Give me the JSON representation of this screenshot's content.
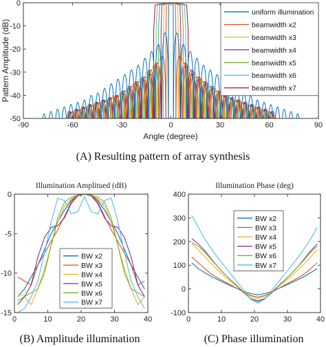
{
  "chart_data": [
    {
      "type": "line",
      "title": "",
      "xlabel": "Angle (degree)",
      "ylabel": "Pattern Amplitude (dB)",
      "xlim": [
        -90,
        90
      ],
      "ylim": [
        -50,
        0
      ],
      "xticks": [
        -90,
        -60,
        -30,
        0,
        30,
        60,
        90
      ],
      "yticks": [
        0,
        -10,
        -20,
        -30,
        -40,
        -50
      ],
      "grid": false,
      "legend_position": "right-top",
      "caption": "(A) Resulting pattern of array synthesis",
      "series": [
        {
          "name": "uniform  illumination",
          "color": "#0072BD",
          "mainlobe_halfwidth_deg": 1.5,
          "sidelobe_peak_db": [
            -13,
            -18,
            -21,
            -24,
            -27,
            -29,
            -31,
            -33,
            -35,
            -37,
            -39,
            -40,
            -42,
            -43,
            -44,
            -45,
            -46,
            -47,
            -48
          ]
        },
        {
          "name": "beamwidth x2",
          "color": "#D95319",
          "mainlobe_halfwidth_deg": 3,
          "sidelobe_peak_db": [
            -23,
            -26,
            -29,
            -32,
            -34,
            -36,
            -38,
            -40,
            -41,
            -42,
            -43,
            -44,
            -45,
            -46,
            -47
          ]
        },
        {
          "name": "beamwidth x3",
          "color": "#EDB120",
          "mainlobe_halfwidth_deg": 4.5,
          "sidelobe_peak_db": [
            -24,
            -27,
            -30,
            -33,
            -35,
            -37,
            -39,
            -40,
            -42,
            -43,
            -44,
            -45,
            -46,
            -47
          ]
        },
        {
          "name": "beamwidth x4",
          "color": "#7E2F8E",
          "mainlobe_halfwidth_deg": 6,
          "sidelobe_peak_db": [
            -26,
            -29,
            -32,
            -34,
            -36,
            -38,
            -40,
            -41,
            -42,
            -43,
            -44,
            -45,
            -46,
            -47
          ]
        },
        {
          "name": "beamwidth x5",
          "color": "#77AC30",
          "mainlobe_halfwidth_deg": 7.5,
          "sidelobe_peak_db": [
            -28,
            -31,
            -33,
            -35,
            -37,
            -39,
            -41,
            -42,
            -43,
            -44,
            -45,
            -46,
            -47
          ]
        },
        {
          "name": "beamwidth x6",
          "color": "#4DBEEE",
          "mainlobe_halfwidth_deg": 9,
          "sidelobe_peak_db": [
            -30,
            -32,
            -34,
            -36,
            -38,
            -40,
            -41,
            -42,
            -43,
            -44,
            -45,
            -46,
            -47
          ]
        },
        {
          "name": "beamwidth x7",
          "color": "#A2142F",
          "mainlobe_halfwidth_deg": 10.5,
          "sidelobe_peak_db": [
            -31,
            -33,
            -35,
            -37,
            -39,
            -40,
            -41,
            -42,
            -43,
            -44,
            -45,
            -46,
            -47
          ]
        }
      ]
    },
    {
      "type": "line",
      "title": "Illumination Amplitued (dB)",
      "xlabel": "",
      "ylabel": "",
      "xlim": [
        0,
        40
      ],
      "ylim": [
        -15,
        0
      ],
      "xticks": [
        0,
        10,
        20,
        30,
        40
      ],
      "yticks": [
        0,
        -5,
        -10,
        -15
      ],
      "grid": false,
      "legend_position": "bottom-center",
      "caption": "(B) Amplitude illumination",
      "x": [
        1,
        3,
        5,
        7,
        9,
        11,
        13,
        15,
        17,
        19,
        21,
        23,
        25,
        27,
        29,
        31,
        33,
        35,
        37,
        39
      ],
      "series": [
        {
          "name": "BW x2",
          "color": "#0072BD",
          "values": [
            -13,
            -12,
            -10.5,
            -9,
            -7,
            -5,
            -3.5,
            -2,
            -0.8,
            -0.1,
            0,
            -0.1,
            -0.8,
            -2,
            -3.5,
            -5,
            -7,
            -9,
            -10.5,
            -12
          ]
        },
        {
          "name": "BW x3",
          "color": "#D95319",
          "values": [
            -10.5,
            -11,
            -11.5,
            -9,
            -7.5,
            -6,
            -4.5,
            -2.8,
            -1,
            -0.1,
            0,
            -0.1,
            -1,
            -2.8,
            -4.5,
            -6,
            -7.5,
            -9,
            -11.5,
            -11
          ]
        },
        {
          "name": "BW x4",
          "color": "#EDB120",
          "values": [
            -12.5,
            -13,
            -14,
            -12,
            -9.5,
            -6.5,
            -3.5,
            -1.5,
            -0.6,
            -0.1,
            0,
            -0.1,
            -0.6,
            -1.5,
            -3.5,
            -6.5,
            -9.5,
            -12,
            -14,
            -13
          ]
        },
        {
          "name": "BW x5",
          "color": "#7E2F8E",
          "values": [
            -14,
            -13,
            -11.5,
            -8,
            -5.5,
            -4.2,
            -4,
            -3,
            -1.2,
            -0.2,
            0,
            -0.2,
            -1.2,
            -3,
            -4,
            -4.2,
            -5.5,
            -8,
            -11.5,
            -13
          ]
        },
        {
          "name": "BW x6",
          "color": "#77AC30",
          "values": [
            -13.5,
            -13,
            -12.5,
            -12,
            -10,
            -6.5,
            -3,
            -1,
            -0.4,
            -0.1,
            0,
            -0.1,
            -0.4,
            -1,
            -3,
            -6.5,
            -10,
            -12,
            -12.5,
            -13
          ]
        },
        {
          "name": "BW x7",
          "color": "#4DBEEE",
          "values": [
            -15,
            -14.5,
            -13,
            -11,
            -7.5,
            -3.5,
            -0.5,
            -0.8,
            -2.5,
            -2.2,
            -0.3,
            -2.2,
            -2.5,
            -0.8,
            -0.5,
            -3.5,
            -7.5,
            -11,
            -13,
            -14.5
          ]
        }
      ]
    },
    {
      "type": "line",
      "title": "Illumination Phase (deg)",
      "xlabel": "",
      "ylabel": "",
      "xlim": [
        0,
        40
      ],
      "ylim": [
        -100,
        400
      ],
      "xticks": [
        0,
        10,
        20,
        30,
        40
      ],
      "yticks": [
        400,
        300,
        200,
        100,
        0,
        -100
      ],
      "grid": false,
      "legend_position": "center-left",
      "caption": "(C) Phase illumination",
      "x": [
        1,
        3,
        5,
        7,
        9,
        11,
        13,
        15,
        17,
        19,
        21,
        23,
        25,
        27,
        29,
        31,
        33,
        35,
        37,
        39
      ],
      "series": [
        {
          "name": "BW x2",
          "color": "#0072BD",
          "values": [
            110,
            85,
            68,
            52,
            38,
            25,
            12,
            0,
            -12,
            -20,
            -25,
            -20,
            -12,
            0,
            12,
            25,
            38,
            52,
            68,
            85
          ]
        },
        {
          "name": "BW x3",
          "color": "#D95319",
          "values": [
            135,
            110,
            85,
            62,
            45,
            30,
            15,
            0,
            -15,
            -28,
            -35,
            -28,
            -15,
            0,
            15,
            30,
            45,
            62,
            85,
            110
          ]
        },
        {
          "name": "BW x4",
          "color": "#EDB120",
          "values": [
            190,
            165,
            135,
            105,
            78,
            52,
            30,
            8,
            -15,
            -32,
            -40,
            -32,
            -15,
            8,
            30,
            52,
            78,
            105,
            135,
            165
          ]
        },
        {
          "name": "BW x5",
          "color": "#7E2F8E",
          "values": [
            212,
            190,
            160,
            125,
            92,
            62,
            35,
            8,
            -20,
            -42,
            -50,
            -42,
            -20,
            8,
            35,
            62,
            92,
            125,
            160,
            190
          ]
        },
        {
          "name": "BW x6",
          "color": "#77AC30",
          "values": [
            195,
            180,
            155,
            122,
            92,
            62,
            35,
            10,
            -18,
            -45,
            -55,
            -45,
            -18,
            10,
            35,
            62,
            92,
            122,
            155,
            180
          ]
        },
        {
          "name": "BW x7",
          "color": "#4DBEEE",
          "values": [
            310,
            260,
            210,
            168,
            130,
            95,
            60,
            25,
            -10,
            -45,
            -60,
            -45,
            -10,
            25,
            60,
            95,
            130,
            168,
            210,
            260
          ]
        }
      ]
    }
  ]
}
